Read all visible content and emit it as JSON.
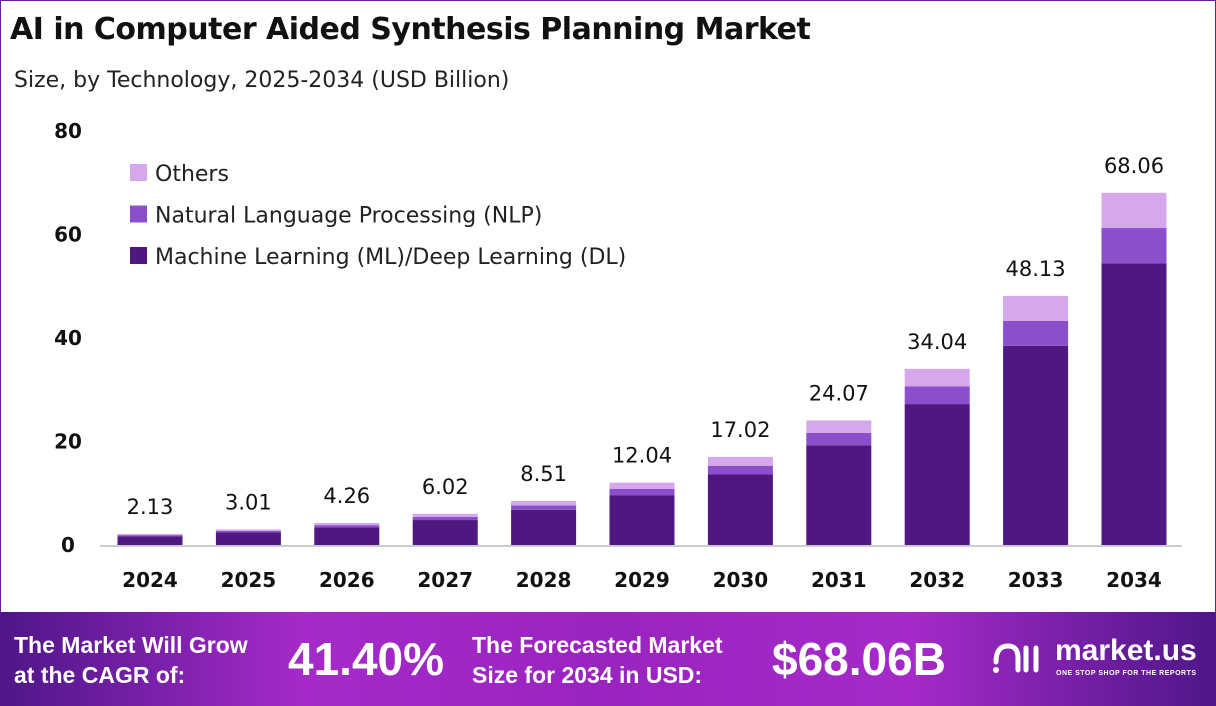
{
  "chart_data": {
    "type": "bar",
    "stacked": true,
    "title": "AI in Computer Aided Synthesis Planning Market",
    "subtitle": "Size, by Technology, 2025-2034 (USD Billion)",
    "categories": [
      "2024",
      "2025",
      "2026",
      "2027",
      "2028",
      "2029",
      "2030",
      "2031",
      "2032",
      "2033",
      "2034"
    ],
    "totals": [
      2.13,
      3.01,
      4.26,
      6.02,
      8.51,
      12.04,
      17.02,
      24.07,
      34.04,
      48.13,
      68.06
    ],
    "series": [
      {
        "name": "Machine Learning (ML)/Deep Learning (DL)",
        "color": "#4f1780",
        "values": [
          1.7,
          2.41,
          3.41,
          4.82,
          6.81,
          9.63,
          13.62,
          19.26,
          27.23,
          38.5,
          54.45
        ]
      },
      {
        "name": "Natural Language Processing (NLP)",
        "color": "#8c4fcb",
        "values": [
          0.21,
          0.3,
          0.43,
          0.6,
          0.85,
          1.2,
          1.7,
          2.41,
          3.4,
          4.82,
          6.8
        ]
      },
      {
        "name": "Others",
        "color": "#d4a8ea",
        "values": [
          0.22,
          0.3,
          0.42,
          0.6,
          0.85,
          1.21,
          1.7,
          2.4,
          3.41,
          4.81,
          6.81
        ]
      }
    ],
    "ylim": [
      0,
      80
    ],
    "yticks": [
      "0",
      "20",
      "40",
      "60",
      "80"
    ],
    "grid": false,
    "legend": "top-left"
  },
  "banner": {
    "cagr_label_1": "The Market Will Grow",
    "cagr_label_2": "at the CAGR of:",
    "cagr_value": "41.40%",
    "forecast_label_1": "The Forecasted Market",
    "forecast_label_2": "Size for 2034 in USD:",
    "forecast_value": "$68.06B",
    "logo_name": "market.us",
    "logo_tagline": "ONE STOP SHOP FOR THE REPORTS"
  }
}
